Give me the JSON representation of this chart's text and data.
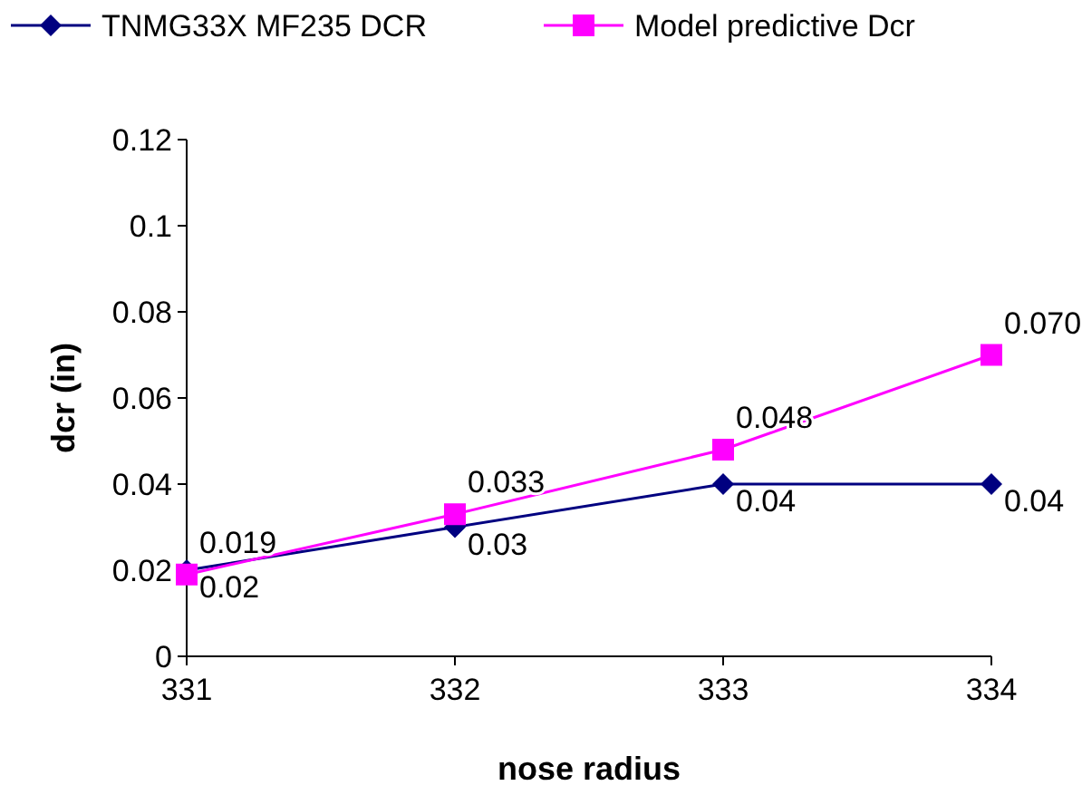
{
  "chart_data": {
    "type": "line",
    "xlabel": "nose radius",
    "ylabel": "dcr (in)",
    "categories": [
      "331",
      "332",
      "333",
      "334"
    ],
    "series": [
      {
        "name": "TNMG33X MF235 DCR",
        "color": "#000080",
        "marker": "diamond",
        "values": [
          0.02,
          0.03,
          0.04,
          0.04
        ],
        "value_labels": [
          "0.02",
          "0.03",
          "0.04",
          "0.04"
        ]
      },
      {
        "name": "Model predictive Dcr",
        "color": "#ff00ff",
        "marker": "square",
        "values": [
          0.019,
          0.033,
          0.048,
          0.07
        ],
        "value_labels": [
          "0.019",
          "0.033",
          "0.048",
          "0.070"
        ]
      }
    ],
    "ylim": [
      0,
      0.12
    ],
    "yticks": [
      {
        "value": 0,
        "label": "0"
      },
      {
        "value": 0.02,
        "label": "0.02"
      },
      {
        "value": 0.04,
        "label": "0.04"
      },
      {
        "value": 0.06,
        "label": "0.06"
      },
      {
        "value": 0.08,
        "label": "0.08"
      },
      {
        "value": 0.1,
        "label": "0.1"
      },
      {
        "value": 0.12,
        "label": "0.12"
      }
    ],
    "grid": false,
    "legend": "top",
    "line_style": "solid"
  }
}
